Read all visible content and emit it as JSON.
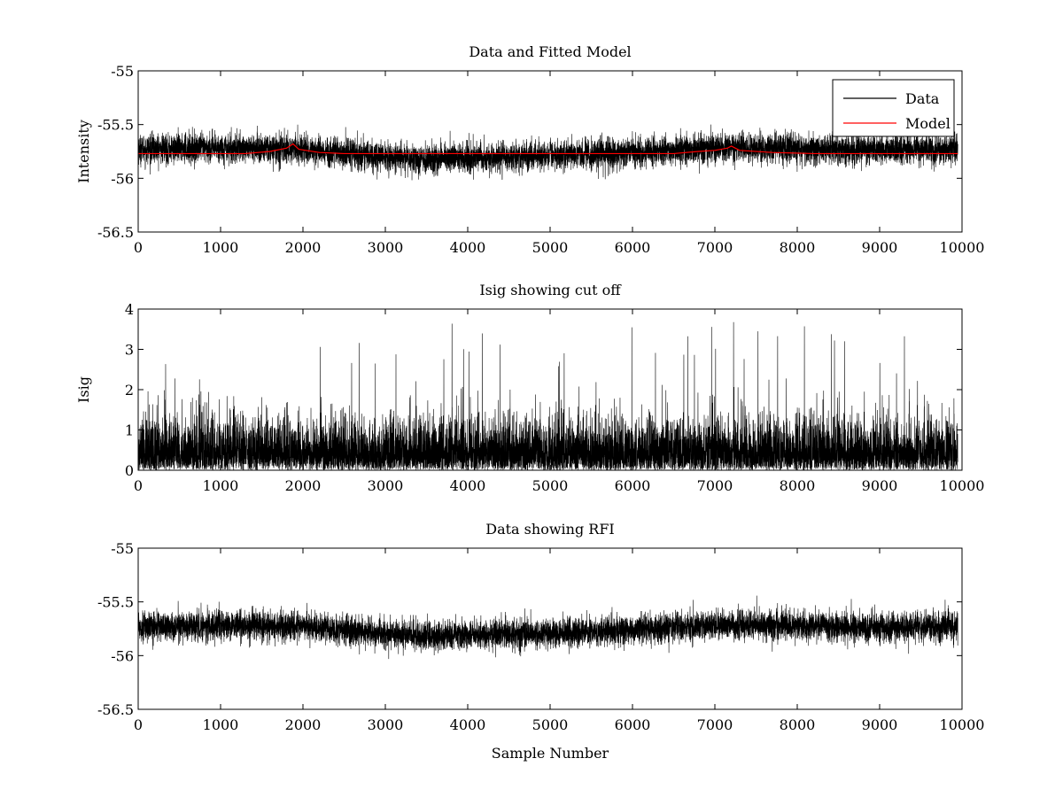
{
  "chart_data": [
    {
      "type": "line",
      "title": "Data and Fitted Model",
      "xlabel": "",
      "ylabel": "Intensity",
      "xlim": [
        0,
        10000
      ],
      "ylim": [
        -56.5,
        -55
      ],
      "xticks": [
        "0",
        "1000",
        "2000",
        "3000",
        "4000",
        "5000",
        "6000",
        "7000",
        "8000",
        "9000",
        "10000"
      ],
      "yticks": [
        "-55",
        "-55.5",
        "-56",
        "-56.5"
      ],
      "ytick_values": [
        -55,
        -55.5,
        -56,
        -56.5
      ],
      "grid": false,
      "legend_position": "top-right",
      "n_samples": 9950,
      "series": [
        {
          "name": "Data",
          "color": "#000000",
          "kind": "noise",
          "mean": -55.76,
          "spread": 0.09,
          "min": -56.05,
          "max": -55.42,
          "trend": [
            [
              0,
              -55.73
            ],
            [
              1000,
              -55.72
            ],
            [
              2000,
              -55.73
            ],
            [
              3000,
              -55.8
            ],
            [
              3500,
              -55.82
            ],
            [
              4500,
              -55.8
            ],
            [
              5000,
              -55.79
            ],
            [
              6000,
              -55.76
            ],
            [
              7000,
              -55.72
            ],
            [
              8000,
              -55.72
            ],
            [
              9000,
              -55.74
            ],
            [
              9950,
              -55.73
            ]
          ]
        },
        {
          "name": "Model",
          "color": "#ff0000",
          "kind": "line",
          "points": [
            [
              0,
              -55.77
            ],
            [
              1300,
              -55.77
            ],
            [
              1600,
              -55.75
            ],
            [
              1800,
              -55.72
            ],
            [
              1880,
              -55.68
            ],
            [
              1950,
              -55.73
            ],
            [
              2200,
              -55.76
            ],
            [
              2500,
              -55.77
            ],
            [
              6500,
              -55.77
            ],
            [
              6800,
              -55.75
            ],
            [
              7000,
              -55.74
            ],
            [
              7150,
              -55.72
            ],
            [
              7200,
              -55.7
            ],
            [
              7300,
              -55.74
            ],
            [
              7700,
              -55.76
            ],
            [
              8200,
              -55.77
            ],
            [
              9950,
              -55.77
            ]
          ]
        }
      ]
    },
    {
      "type": "line",
      "title": "Isig showing cut off",
      "xlabel": "",
      "ylabel": "Isig",
      "xlim": [
        0,
        10000
      ],
      "ylim": [
        0,
        4
      ],
      "xticks": [
        "0",
        "1000",
        "2000",
        "3000",
        "4000",
        "5000",
        "6000",
        "7000",
        "8000",
        "9000",
        "10000"
      ],
      "yticks": [
        "0",
        "1",
        "2",
        "3",
        "4"
      ],
      "ytick_values": [
        0,
        1,
        2,
        3,
        4
      ],
      "grid": false,
      "n_samples": 9950,
      "series": [
        {
          "name": "",
          "color": "#000000",
          "kind": "abs-noise",
          "mean": 0.75,
          "spread": 0.6,
          "min": 0,
          "max": 3.7
        }
      ]
    },
    {
      "type": "line",
      "title": "Data showing RFI",
      "xlabel": "Sample Number",
      "ylabel": "",
      "xlim": [
        0,
        10000
      ],
      "ylim": [
        -56.5,
        -55
      ],
      "xticks": [
        "0",
        "1000",
        "2000",
        "3000",
        "4000",
        "5000",
        "6000",
        "7000",
        "8000",
        "9000",
        "10000"
      ],
      "yticks": [
        "-55",
        "-55.5",
        "-56",
        "-56.5"
      ],
      "ytick_values": [
        -55,
        -55.5,
        -56,
        -56.5
      ],
      "grid": false,
      "n_samples": 9950,
      "series": [
        {
          "name": "",
          "color": "#000000",
          "kind": "noise",
          "mean": -55.76,
          "spread": 0.09,
          "min": -56.05,
          "max": -55.42,
          "trend": [
            [
              0,
              -55.73
            ],
            [
              1000,
              -55.72
            ],
            [
              2000,
              -55.73
            ],
            [
              3000,
              -55.8
            ],
            [
              3500,
              -55.82
            ],
            [
              4500,
              -55.8
            ],
            [
              5000,
              -55.79
            ],
            [
              6000,
              -55.76
            ],
            [
              7000,
              -55.72
            ],
            [
              8000,
              -55.72
            ],
            [
              9000,
              -55.74
            ],
            [
              9950,
              -55.73
            ]
          ]
        }
      ]
    }
  ]
}
